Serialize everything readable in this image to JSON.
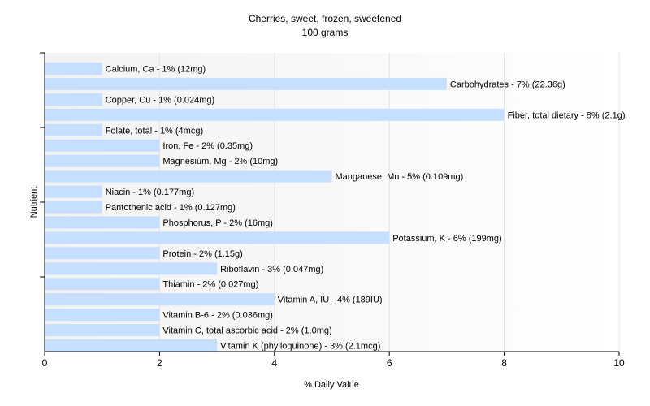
{
  "chart_data": {
    "type": "bar",
    "orientation": "horizontal",
    "title": "Cherries, sweet, frozen, sweetened",
    "subtitle": "100 grams",
    "xlabel": "% Daily Value",
    "ylabel": "Nutrient",
    "xlim": [
      0,
      10
    ],
    "xticks": [
      0,
      2,
      4,
      6,
      8,
      10
    ],
    "grid": true,
    "bar_color": "#c6deff",
    "categories": [
      "Calcium, Ca",
      "Carbohydrates",
      "Copper, Cu",
      "Fiber, total dietary",
      "Folate, total",
      "Iron, Fe",
      "Magnesium, Mg",
      "Manganese, Mn",
      "Niacin",
      "Pantothenic acid",
      "Phosphorus, P",
      "Potassium, K",
      "Protein",
      "Riboflavin",
      "Thiamin",
      "Vitamin A, IU",
      "Vitamin B-6",
      "Vitamin C, total ascorbic acid",
      "Vitamin K (phylloquinone)"
    ],
    "values": [
      1,
      7,
      1,
      8,
      1,
      2,
      2,
      5,
      1,
      1,
      2,
      6,
      2,
      3,
      2,
      4,
      2,
      2,
      3
    ],
    "labels": [
      "Calcium, Ca - 1% (12mg)",
      "Carbohydrates - 7% (22.36g)",
      "Copper, Cu - 1% (0.024mg)",
      "Fiber, total dietary - 8% (2.1g)",
      "Folate, total - 1% (4mcg)",
      "Iron, Fe - 2% (0.35mg)",
      "Magnesium, Mg - 2% (10mg)",
      "Manganese, Mn - 5% (0.109mg)",
      "Niacin - 1% (0.177mg)",
      "Pantothenic acid - 1% (0.127mg)",
      "Phosphorus, P - 2% (16mg)",
      "Potassium, K - 6% (199mg)",
      "Protein - 2% (1.15g)",
      "Riboflavin - 3% (0.047mg)",
      "Thiamin - 2% (0.027mg)",
      "Vitamin A, IU - 4% (189IU)",
      "Vitamin B-6 - 2% (0.036mg)",
      "Vitamin C, total ascorbic acid - 2% (1.0mg)",
      "Vitamin K (phylloquinone) - 3% (2.1mcg)"
    ]
  }
}
